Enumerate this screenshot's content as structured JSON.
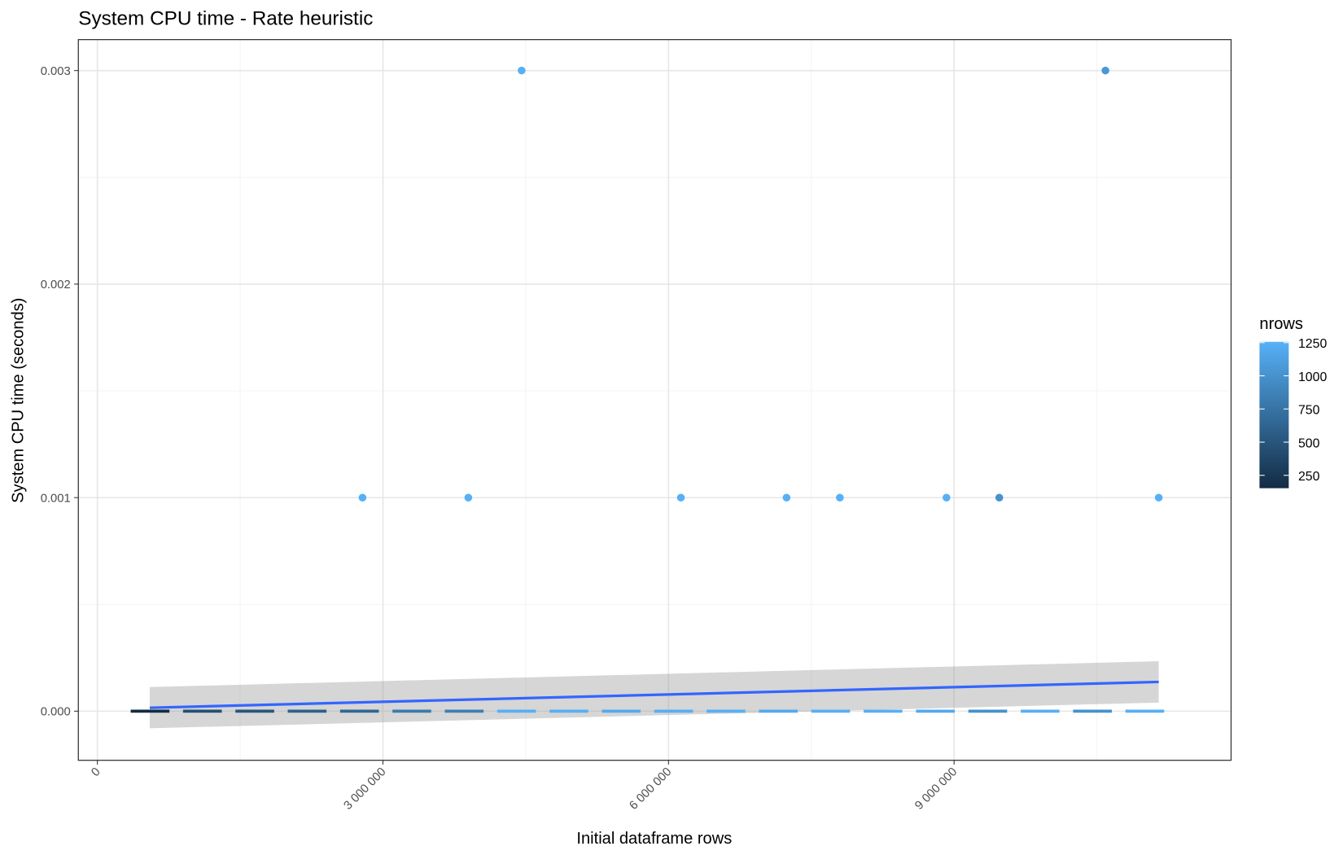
{
  "chart_data": {
    "type": "scatter",
    "title": "System CPU time - Rate heuristic",
    "x_label": "Initial dataframe rows",
    "y_label": "System CPU time (seconds)",
    "xlim": [
      -200000,
      11910000
    ],
    "ylim": [
      -0.00023,
      0.003145
    ],
    "xticks": [
      {
        "value": 0,
        "label": "0"
      },
      {
        "value": 3000000,
        "label": "3 000 000"
      },
      {
        "value": 6000000,
        "label": "6 000 000"
      },
      {
        "value": 9000000,
        "label": "9 000 000"
      }
    ],
    "x_minor_ticks": [
      1500000,
      4500000,
      7500000,
      10500000
    ],
    "yticks": [
      {
        "value": 0,
        "label": "0.000"
      },
      {
        "value": 0.001,
        "label": "0.001"
      },
      {
        "value": 0.002,
        "label": "0.002"
      },
      {
        "value": 0.003,
        "label": "0.003"
      }
    ],
    "y_minor_ticks": [
      0.0005,
      0.0015,
      0.0025
    ],
    "grid": true,
    "points": {
      "x": [
        2785000,
        3897000,
        4457000,
        6130000,
        7240000,
        7800000,
        8920000,
        9475000,
        10590000,
        11150000
      ],
      "values": [
        0.001,
        0.001,
        0.003,
        0.001,
        0.001,
        0.001,
        0.001,
        0.001,
        0.003,
        0.001
      ],
      "nrows": [
        1250,
        1250,
        1250,
        1250,
        1250,
        1250,
        1250,
        1000,
        1050,
        1250
      ]
    },
    "zero_line": {
      "x": [
        350000,
        900000,
        1450000,
        2000000,
        2550000,
        3100000,
        3650000,
        4200000,
        4750000,
        5300000,
        5850000,
        6400000,
        6950000,
        7500000,
        8050000,
        8600000,
        9150000,
        9700000,
        10250000,
        10800000,
        11350000
      ],
      "values": [
        0,
        0,
        0,
        0,
        0,
        0,
        0,
        0,
        0,
        0,
        0,
        0,
        0,
        0,
        0,
        0,
        0,
        0,
        0,
        0,
        0
      ],
      "nrows": [
        160,
        450,
        500,
        600,
        650,
        800,
        850,
        1250,
        1250,
        1200,
        1250,
        1250,
        1200,
        1250,
        1250,
        1200,
        1000,
        1250,
        1000,
        1250,
        1250
      ],
      "dashed": true
    },
    "smooth": {
      "x": [
        550000,
        11150000
      ],
      "values": [
        1.6e-05,
        0.000137
      ],
      "lower": [
        -8e-05,
        4e-05
      ],
      "upper": [
        0.000113,
        0.000234
      ],
      "color": "#3366ff",
      "band_color": "#999999"
    },
    "legend": {
      "title": "nrows",
      "limits": [
        153,
        1256
      ],
      "low_color": "#132b43",
      "high_color": "#56b1f7",
      "ticks": [
        250,
        500,
        750,
        1000,
        1250
      ]
    }
  }
}
